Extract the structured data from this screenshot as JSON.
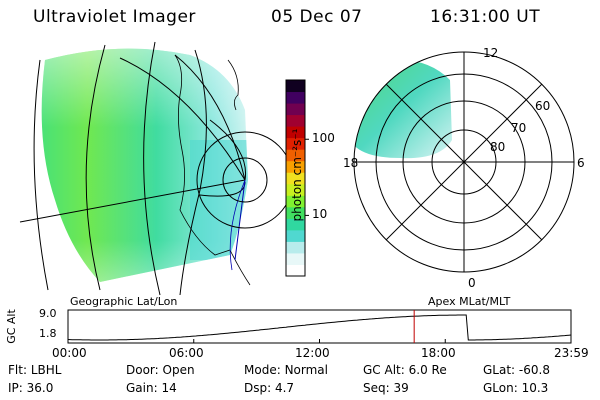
{
  "header": {
    "instrument": "Ultraviolet Imager",
    "date": "05 Dec 07",
    "time": "16:31:00 UT"
  },
  "colorbar": {
    "label": "photon cm⁻²s⁻¹",
    "ticks": [
      {
        "label": "100",
        "value": 100
      },
      {
        "label": "10",
        "value": 10
      }
    ],
    "colors": [
      "#ffffff",
      "#e8f8f8",
      "#b8ecec",
      "#50d8d0",
      "#30d8a0",
      "#40e060",
      "#80f030",
      "#c8f020",
      "#f0e020",
      "#f8a000",
      "#f06000",
      "#e02000",
      "#c00000",
      "#a00030",
      "#700050",
      "#400060",
      "#100020"
    ]
  },
  "polar_plot": {
    "mlt_labels": [
      {
        "label": "12",
        "hour": 12
      },
      {
        "label": "18",
        "hour": 18
      },
      {
        "label": "6",
        "hour": 6
      },
      {
        "label": "0",
        "hour": 0
      }
    ],
    "mlat_labels": [
      {
        "label": "60",
        "mlat": 60
      },
      {
        "label": "70",
        "mlat": 70
      },
      {
        "label": "80",
        "mlat": 80
      }
    ]
  },
  "coord_labels": {
    "left": "Geographic Lat/Lon",
    "right": "Apex MLat/MLT"
  },
  "alt_plot": {
    "ylabel": "GC Alt",
    "yticks": [
      "9.0",
      "1.8"
    ],
    "xticks": [
      "00:00",
      "06:00",
      "12:00",
      "18:00",
      "23:59"
    ],
    "current_hour": 16.517
  },
  "info": {
    "row1": [
      {
        "key": "Flt:",
        "value": "LBHL"
      },
      {
        "key": "Door:",
        "value": "Open"
      },
      {
        "key": "Mode:",
        "value": "Normal"
      },
      {
        "key": "GC Alt:",
        "value": "6.0 Re"
      },
      {
        "key": "GLat:",
        "value": "-60.8"
      }
    ],
    "row2": [
      {
        "key": "IP:",
        "value": "36.0"
      },
      {
        "key": "Gain:",
        "value": "14"
      },
      {
        "key": "Dsp:",
        "value": "4.7"
      },
      {
        "key": "Seq:",
        "value": "39"
      },
      {
        "key": "GLon:",
        "value": "10.3"
      }
    ]
  }
}
